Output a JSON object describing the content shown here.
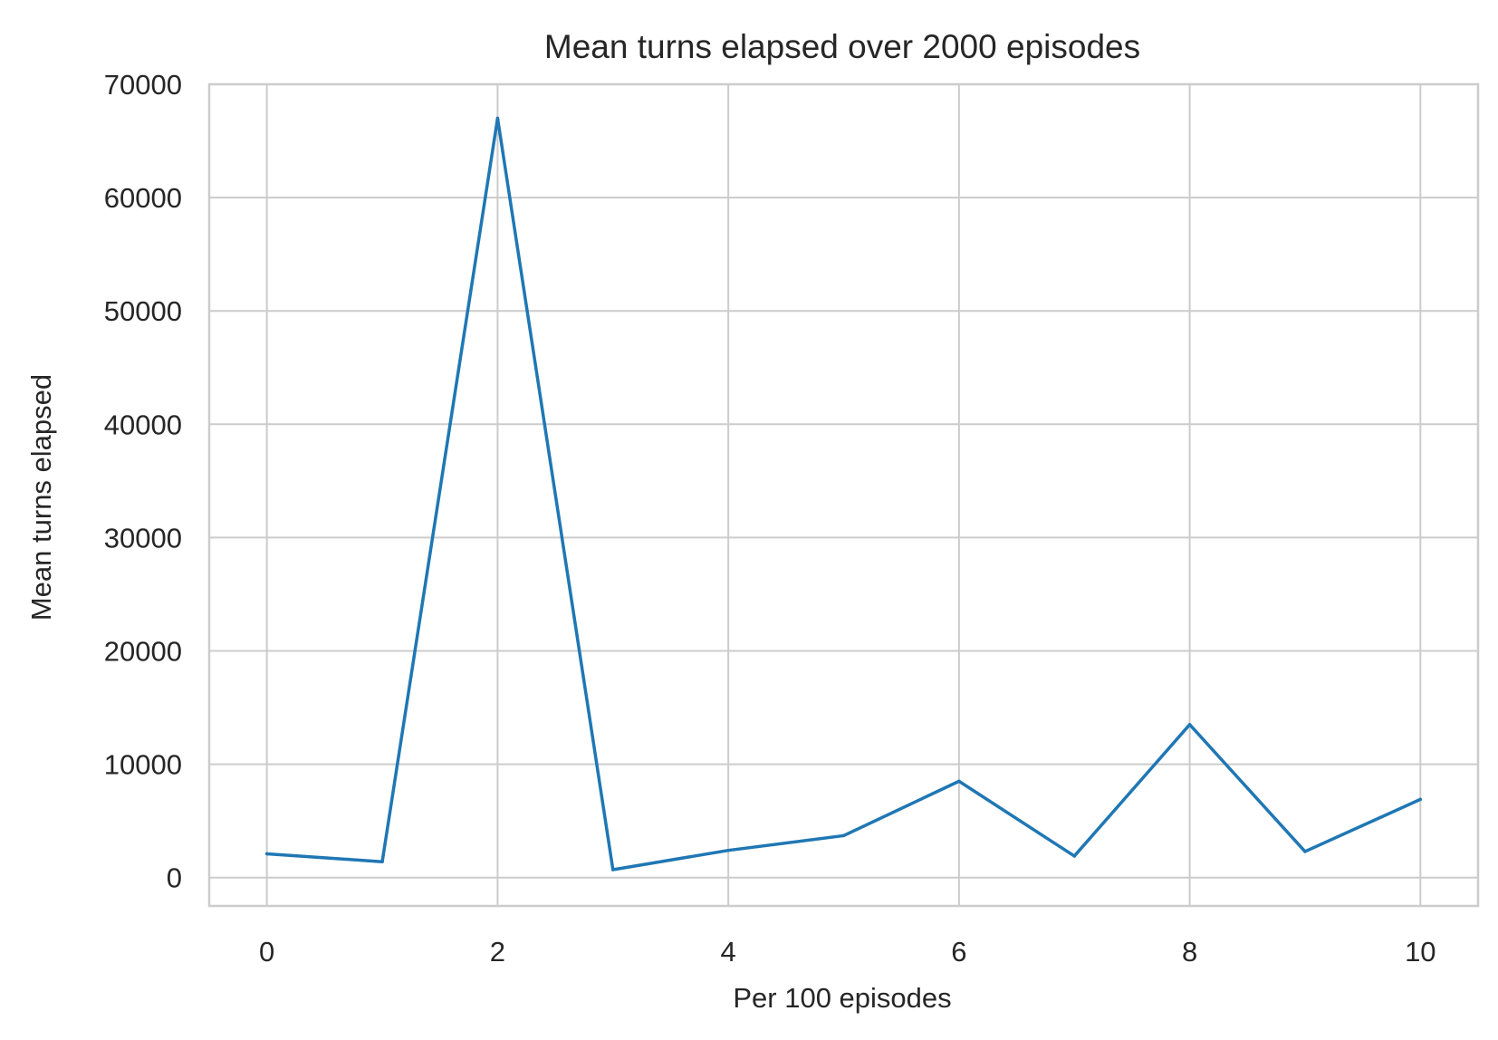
{
  "chart_data": {
    "type": "line",
    "title": "Mean turns elapsed over 2000 episodes",
    "xlabel": "Per 100 episodes",
    "ylabel": "Mean turns elapsed",
    "x": [
      0,
      1,
      2,
      3,
      4,
      5,
      6,
      7,
      8,
      9,
      10
    ],
    "series": [
      {
        "name": "Mean turns elapsed",
        "color": "#1f77b4",
        "values": [
          2100,
          1400,
          67000,
          700,
          2400,
          3700,
          8500,
          1900,
          13500,
          2300,
          6900
        ]
      }
    ],
    "xlim": [
      -0.5,
      10.5
    ],
    "ylim": [
      -2500,
      70000
    ],
    "xticks": [
      0,
      2,
      4,
      6,
      8,
      10
    ],
    "xtick_labels": [
      "0",
      "2",
      "4",
      "6",
      "8",
      "10"
    ],
    "yticks": [
      0,
      10000,
      20000,
      30000,
      40000,
      50000,
      60000,
      70000
    ],
    "ytick_labels": [
      "0",
      "10000",
      "20000",
      "30000",
      "40000",
      "50000",
      "60000",
      "70000"
    ],
    "grid": true,
    "legend": "none"
  }
}
